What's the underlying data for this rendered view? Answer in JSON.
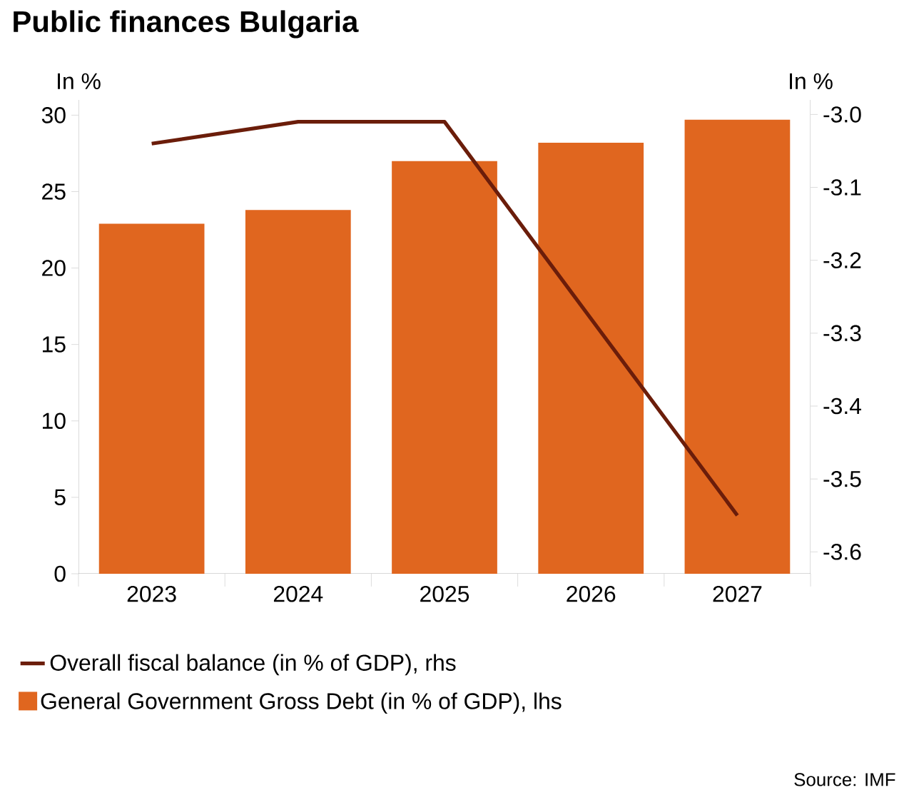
{
  "chart_data": {
    "type": "bar",
    "title": "Public finances Bulgaria",
    "ylabel": "In %",
    "y2label": "In %",
    "categories": [
      "2023",
      "2024",
      "2025",
      "2026",
      "2027"
    ],
    "series": [
      {
        "name": "Overall fiscal balance (in % of GDP), rhs",
        "type": "line",
        "axis": "y2",
        "color": "#6b1d0a",
        "values": [
          -3.04,
          -3.01,
          -3.01,
          -3.28,
          -3.55
        ]
      },
      {
        "name": "General Government Gross Debt (in % of GDP), lhs",
        "type": "bar",
        "color": "#e0661f",
        "values": [
          22.9,
          23.8,
          27.0,
          28.2,
          29.7
        ]
      }
    ],
    "ylim": [
      0,
      31
    ],
    "yticks": [
      0,
      5,
      10,
      15,
      20,
      25,
      30
    ],
    "y2lim": [
      -3.63,
      -2.98
    ],
    "y2ticks": [
      -3.6,
      -3.5,
      -3.4,
      -3.3,
      -3.2,
      -3.1,
      {
        "value": -3.0,
        "label": "-3.0"
      }
    ],
    "legend": "bottom",
    "annotations": [
      "Source: IMF"
    ]
  }
}
